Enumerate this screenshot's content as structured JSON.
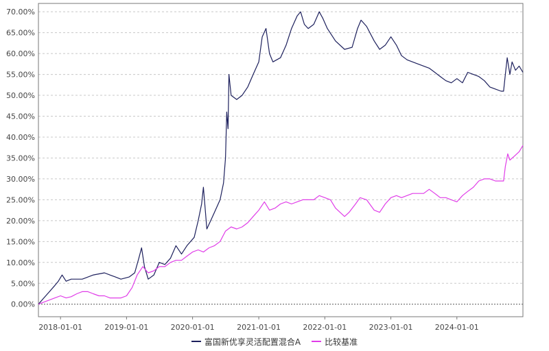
{
  "chart_data": {
    "type": "line",
    "title": "",
    "xlabel": "",
    "ylabel": "",
    "x_range": [
      "2017-09-01",
      "2024-12-31"
    ],
    "ylim": [
      -3,
      72
    ],
    "y_ticks": [
      "0.00%",
      "5.00%",
      "10.00%",
      "15.00%",
      "20.00%",
      "25.00%",
      "30.00%",
      "35.00%",
      "40.00%",
      "45.00%",
      "50.00%",
      "55.00%",
      "60.00%",
      "65.00%",
      "70.00%"
    ],
    "x_ticks": [
      "2018-01-01",
      "2019-01-01",
      "2020-01-01",
      "2021-01-01",
      "2022-01-01",
      "2023-01-01",
      "2024-01-01"
    ],
    "grid": "horizontal dashed",
    "legend_position": "bottom-center",
    "series": [
      {
        "name": "富国新优享灵活配置混合A",
        "color": "#1c1f5c",
        "points": [
          [
            "2017-09-01",
            0.0
          ],
          [
            "2017-10-01",
            1.5
          ],
          [
            "2017-11-01",
            3.0
          ],
          [
            "2017-12-01",
            4.5
          ],
          [
            "2017-12-20",
            5.5
          ],
          [
            "2018-01-10",
            7.0
          ],
          [
            "2018-02-01",
            5.5
          ],
          [
            "2018-03-01",
            6.0
          ],
          [
            "2018-05-01",
            6.0
          ],
          [
            "2018-07-01",
            7.0
          ],
          [
            "2018-09-01",
            7.5
          ],
          [
            "2018-10-01",
            7.0
          ],
          [
            "2018-11-01",
            6.5
          ],
          [
            "2018-12-01",
            6.0
          ],
          [
            "2019-01-15",
            6.5
          ],
          [
            "2019-02-15",
            7.5
          ],
          [
            "2019-03-10",
            11.0
          ],
          [
            "2019-03-25",
            13.5
          ],
          [
            "2019-04-10",
            9.0
          ],
          [
            "2019-05-01",
            6.0
          ],
          [
            "2019-06-01",
            7.0
          ],
          [
            "2019-07-01",
            10.0
          ],
          [
            "2019-08-01",
            9.5
          ],
          [
            "2019-09-01",
            11.0
          ],
          [
            "2019-10-01",
            14.0
          ],
          [
            "2019-11-01",
            12.0
          ],
          [
            "2019-12-01",
            14.0
          ],
          [
            "2020-01-10",
            16.0
          ],
          [
            "2020-02-01",
            20.0
          ],
          [
            "2020-02-20",
            24.0
          ],
          [
            "2020-03-01",
            28.0
          ],
          [
            "2020-03-20",
            18.0
          ],
          [
            "2020-04-10",
            20.0
          ],
          [
            "2020-05-01",
            22.0
          ],
          [
            "2020-06-01",
            25.0
          ],
          [
            "2020-06-20",
            29.0
          ],
          [
            "2020-07-01",
            35.0
          ],
          [
            "2020-07-08",
            46.0
          ],
          [
            "2020-07-15",
            42.0
          ],
          [
            "2020-07-20",
            55.0
          ],
          [
            "2020-08-01",
            50.0
          ],
          [
            "2020-09-01",
            49.0
          ],
          [
            "2020-10-01",
            50.0
          ],
          [
            "2020-11-01",
            52.0
          ],
          [
            "2020-12-01",
            55.0
          ],
          [
            "2021-01-01",
            58.0
          ],
          [
            "2021-01-20",
            64.0
          ],
          [
            "2021-02-10",
            66.0
          ],
          [
            "2021-03-01",
            60.0
          ],
          [
            "2021-03-20",
            58.0
          ],
          [
            "2021-05-01",
            59.0
          ],
          [
            "2021-06-01",
            62.0
          ],
          [
            "2021-07-01",
            66.0
          ],
          [
            "2021-08-01",
            69.0
          ],
          [
            "2021-08-20",
            70.0
          ],
          [
            "2021-09-10",
            67.0
          ],
          [
            "2021-10-01",
            66.0
          ],
          [
            "2021-11-01",
            67.0
          ],
          [
            "2021-12-01",
            70.0
          ],
          [
            "2021-12-20",
            68.5
          ],
          [
            "2022-01-15",
            66.0
          ],
          [
            "2022-03-01",
            63.0
          ],
          [
            "2022-04-20",
            61.0
          ],
          [
            "2022-06-01",
            61.5
          ],
          [
            "2022-07-01",
            66.0
          ],
          [
            "2022-07-20",
            68.0
          ],
          [
            "2022-08-20",
            66.5
          ],
          [
            "2022-10-01",
            63.0
          ],
          [
            "2022-10-31",
            61.0
          ],
          [
            "2022-12-01",
            62.0
          ],
          [
            "2023-01-01",
            64.0
          ],
          [
            "2023-02-01",
            62.0
          ],
          [
            "2023-03-01",
            59.5
          ],
          [
            "2023-04-01",
            58.5
          ],
          [
            "2023-06-01",
            57.5
          ],
          [
            "2023-08-01",
            56.5
          ],
          [
            "2023-09-01",
            55.5
          ],
          [
            "2023-10-01",
            54.5
          ],
          [
            "2023-11-01",
            53.5
          ],
          [
            "2023-12-01",
            53.0
          ],
          [
            "2024-01-01",
            54.0
          ],
          [
            "2024-02-01",
            53.0
          ],
          [
            "2024-03-01",
            55.5
          ],
          [
            "2024-04-01",
            55.0
          ],
          [
            "2024-05-01",
            54.5
          ],
          [
            "2024-06-01",
            53.5
          ],
          [
            "2024-07-01",
            52.0
          ],
          [
            "2024-08-01",
            51.5
          ],
          [
            "2024-09-01",
            51.0
          ],
          [
            "2024-09-15",
            51.0
          ],
          [
            "2024-09-25",
            55.0
          ],
          [
            "2024-10-05",
            59.0
          ],
          [
            "2024-10-20",
            55.0
          ],
          [
            "2024-11-01",
            58.0
          ],
          [
            "2024-11-20",
            56.0
          ],
          [
            "2024-12-10",
            57.0
          ],
          [
            "2024-12-31",
            55.5
          ]
        ]
      },
      {
        "name": "比较基准",
        "color": "#e03ce8",
        "points": [
          [
            "2017-09-01",
            0.0
          ],
          [
            "2017-10-01",
            0.5
          ],
          [
            "2017-11-01",
            1.0
          ],
          [
            "2017-12-01",
            1.5
          ],
          [
            "2018-01-01",
            2.0
          ],
          [
            "2018-02-01",
            1.5
          ],
          [
            "2018-03-01",
            1.8
          ],
          [
            "2018-04-01",
            2.5
          ],
          [
            "2018-05-01",
            3.0
          ],
          [
            "2018-06-01",
            3.0
          ],
          [
            "2018-07-01",
            2.5
          ],
          [
            "2018-08-01",
            2.0
          ],
          [
            "2018-09-01",
            2.0
          ],
          [
            "2018-10-01",
            1.5
          ],
          [
            "2018-11-01",
            1.5
          ],
          [
            "2018-12-01",
            1.5
          ],
          [
            "2019-01-01",
            2.0
          ],
          [
            "2019-02-01",
            4.0
          ],
          [
            "2019-03-01",
            7.0
          ],
          [
            "2019-04-01",
            9.0
          ],
          [
            "2019-05-01",
            7.5
          ],
          [
            "2019-06-01",
            8.0
          ],
          [
            "2019-07-01",
            9.0
          ],
          [
            "2019-08-01",
            9.0
          ],
          [
            "2019-09-01",
            10.0
          ],
          [
            "2019-10-01",
            10.5
          ],
          [
            "2019-11-01",
            10.5
          ],
          [
            "2019-12-01",
            11.5
          ],
          [
            "2020-01-01",
            12.5
          ],
          [
            "2020-02-01",
            13.0
          ],
          [
            "2020-03-01",
            12.5
          ],
          [
            "2020-04-01",
            13.5
          ],
          [
            "2020-05-01",
            14.0
          ],
          [
            "2020-06-01",
            15.0
          ],
          [
            "2020-07-01",
            17.5
          ],
          [
            "2020-08-01",
            18.5
          ],
          [
            "2020-09-01",
            18.0
          ],
          [
            "2020-10-01",
            18.5
          ],
          [
            "2020-11-01",
            19.5
          ],
          [
            "2020-12-01",
            21.0
          ],
          [
            "2021-01-01",
            22.5
          ],
          [
            "2021-02-01",
            24.5
          ],
          [
            "2021-03-01",
            22.5
          ],
          [
            "2021-04-01",
            23.0
          ],
          [
            "2021-05-01",
            24.0
          ],
          [
            "2021-06-01",
            24.5
          ],
          [
            "2021-07-01",
            24.0
          ],
          [
            "2021-08-01",
            24.5
          ],
          [
            "2021-09-01",
            25.0
          ],
          [
            "2021-10-01",
            25.0
          ],
          [
            "2021-11-01",
            25.0
          ],
          [
            "2021-12-01",
            26.0
          ],
          [
            "2022-01-01",
            25.5
          ],
          [
            "2022-02-01",
            25.0
          ],
          [
            "2022-03-01",
            23.0
          ],
          [
            "2022-04-20",
            21.0
          ],
          [
            "2022-05-15",
            22.0
          ],
          [
            "2022-06-20",
            24.0
          ],
          [
            "2022-07-15",
            25.5
          ],
          [
            "2022-08-20",
            25.0
          ],
          [
            "2022-10-01",
            22.5
          ],
          [
            "2022-10-31",
            22.0
          ],
          [
            "2022-12-01",
            24.0
          ],
          [
            "2023-01-01",
            25.5
          ],
          [
            "2023-02-01",
            26.0
          ],
          [
            "2023-03-01",
            25.5
          ],
          [
            "2023-05-01",
            26.5
          ],
          [
            "2023-07-01",
            26.5
          ],
          [
            "2023-08-01",
            27.5
          ],
          [
            "2023-09-01",
            26.5
          ],
          [
            "2023-10-01",
            25.5
          ],
          [
            "2023-11-01",
            25.5
          ],
          [
            "2023-12-01",
            25.0
          ],
          [
            "2024-01-01",
            24.5
          ],
          [
            "2024-02-01",
            26.0
          ],
          [
            "2024-03-01",
            27.0
          ],
          [
            "2024-04-01",
            28.0
          ],
          [
            "2024-05-01",
            29.5
          ],
          [
            "2024-06-01",
            30.0
          ],
          [
            "2024-07-01",
            30.0
          ],
          [
            "2024-08-01",
            29.5
          ],
          [
            "2024-09-15",
            29.5
          ],
          [
            "2024-09-25",
            33.0
          ],
          [
            "2024-10-08",
            36.0
          ],
          [
            "2024-10-20",
            34.5
          ],
          [
            "2024-11-15",
            35.5
          ],
          [
            "2024-12-10",
            36.5
          ],
          [
            "2024-12-31",
            38.0
          ]
        ]
      }
    ]
  }
}
